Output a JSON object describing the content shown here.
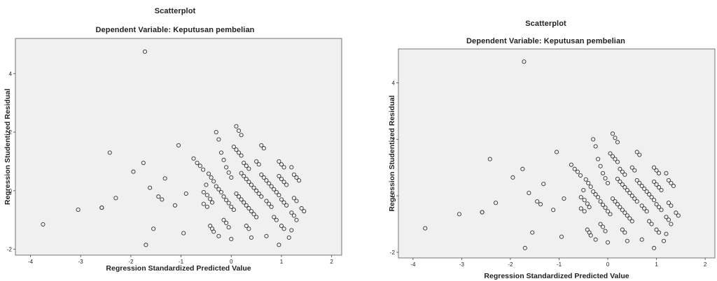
{
  "chart_data": [
    {
      "type": "scatter",
      "title": "Scatterplot",
      "subtitle": "Dependent Variable: Keputusan pembelian",
      "xlabel": "Regression Standardized Predicted Value",
      "ylabel": "Regression Studentized Residual",
      "xlim": [
        -4.3,
        2.2
      ],
      "ylim": [
        -2.2,
        5.2
      ],
      "xticks": [
        "-4",
        "-3",
        "-2",
        "-1",
        "0",
        "1",
        "2"
      ],
      "yticks": [
        "-2",
        "0",
        "2",
        "4"
      ],
      "grid": false,
      "points": [
        [
          -1.72,
          4.75
        ],
        [
          -3.75,
          -1.15
        ],
        [
          -3.05,
          -0.65
        ],
        [
          -2.58,
          -0.58
        ],
        [
          -2.58,
          -0.58
        ],
        [
          -2.42,
          1.3
        ],
        [
          -2.3,
          -0.25
        ],
        [
          -1.95,
          0.65
        ],
        [
          -1.75,
          0.95
        ],
        [
          -1.62,
          0.1
        ],
        [
          -1.55,
          -1.3
        ],
        [
          -1.7,
          -1.85
        ],
        [
          -1.45,
          -0.2
        ],
        [
          -1.38,
          -0.3
        ],
        [
          -1.32,
          0.42
        ],
        [
          -1.12,
          -0.5
        ],
        [
          -1.05,
          1.55
        ],
        [
          -0.95,
          -1.45
        ],
        [
          -0.9,
          -0.1
        ],
        [
          -0.75,
          1.1
        ],
        [
          -0.68,
          0.95
        ],
        [
          -0.62,
          0.85
        ],
        [
          -0.56,
          0.72
        ],
        [
          -0.5,
          0.2
        ],
        [
          -0.45,
          0.58
        ],
        [
          -0.4,
          0.45
        ],
        [
          -0.35,
          0.32
        ],
        [
          -0.3,
          0.15
        ],
        [
          -0.25,
          0.05
        ],
        [
          -0.2,
          -0.05
        ],
        [
          -0.15,
          -0.2
        ],
        [
          -0.1,
          -0.32
        ],
        [
          -0.05,
          -0.42
        ],
        [
          0.0,
          -0.55
        ],
        [
          0.05,
          -0.65
        ],
        [
          -0.55,
          -0.05
        ],
        [
          -0.48,
          -0.15
        ],
        [
          -0.42,
          -0.28
        ],
        [
          -0.38,
          -0.4
        ],
        [
          -0.55,
          -0.45
        ],
        [
          -0.48,
          -0.55
        ],
        [
          -0.42,
          -1.2
        ],
        [
          -0.38,
          -1.3
        ],
        [
          -0.35,
          -1.4
        ],
        [
          -0.15,
          -1.0
        ],
        [
          -0.1,
          -1.1
        ],
        [
          -0.05,
          -1.25
        ],
        [
          -0.3,
          2.0
        ],
        [
          -0.25,
          1.75
        ],
        [
          -0.2,
          1.3
        ],
        [
          -0.15,
          1.05
        ],
        [
          -0.1,
          0.8
        ],
        [
          -0.05,
          0.62
        ],
        [
          0.0,
          0.45
        ],
        [
          -0.25,
          -1.55
        ],
        [
          0.0,
          -1.65
        ],
        [
          0.1,
          2.2
        ],
        [
          0.15,
          2.05
        ],
        [
          0.2,
          1.9
        ],
        [
          0.05,
          1.5
        ],
        [
          0.1,
          1.4
        ],
        [
          0.15,
          1.3
        ],
        [
          0.2,
          1.2
        ],
        [
          0.25,
          0.95
        ],
        [
          0.3,
          0.85
        ],
        [
          0.35,
          0.75
        ],
        [
          0.2,
          0.6
        ],
        [
          0.25,
          0.5
        ],
        [
          0.3,
          0.4
        ],
        [
          0.35,
          0.3
        ],
        [
          0.4,
          0.2
        ],
        [
          0.45,
          0.1
        ],
        [
          0.5,
          0.0
        ],
        [
          0.55,
          -0.1
        ],
        [
          0.6,
          -0.2
        ],
        [
          0.1,
          -0.1
        ],
        [
          0.15,
          -0.2
        ],
        [
          0.2,
          -0.3
        ],
        [
          0.25,
          -0.4
        ],
        [
          0.3,
          -0.5
        ],
        [
          0.35,
          -0.6
        ],
        [
          0.4,
          -0.7
        ],
        [
          0.45,
          -0.8
        ],
        [
          0.5,
          -0.9
        ],
        [
          0.3,
          -1.2
        ],
        [
          0.35,
          -1.3
        ],
        [
          0.4,
          -1.6
        ],
        [
          0.6,
          1.55
        ],
        [
          0.65,
          1.45
        ],
        [
          0.5,
          1.0
        ],
        [
          0.55,
          0.9
        ],
        [
          0.6,
          0.55
        ],
        [
          0.65,
          0.45
        ],
        [
          0.7,
          0.35
        ],
        [
          0.75,
          0.25
        ],
        [
          0.8,
          0.15
        ],
        [
          0.85,
          0.05
        ],
        [
          0.9,
          -0.05
        ],
        [
          0.95,
          -0.15
        ],
        [
          0.7,
          -0.35
        ],
        [
          0.75,
          -0.45
        ],
        [
          0.8,
          -0.55
        ],
        [
          0.7,
          -1.55
        ],
        [
          0.85,
          -0.9
        ],
        [
          0.9,
          -1.0
        ],
        [
          0.95,
          1.0
        ],
        [
          1.0,
          0.9
        ],
        [
          1.05,
          0.8
        ],
        [
          0.95,
          0.5
        ],
        [
          1.0,
          0.4
        ],
        [
          1.05,
          0.3
        ],
        [
          1.1,
          0.2
        ],
        [
          1.0,
          -0.3
        ],
        [
          1.05,
          -0.4
        ],
        [
          1.1,
          -0.5
        ],
        [
          1.0,
          -1.2
        ],
        [
          1.05,
          -1.3
        ],
        [
          0.95,
          -1.85
        ],
        [
          1.2,
          0.8
        ],
        [
          1.25,
          0.55
        ],
        [
          1.3,
          0.45
        ],
        [
          1.35,
          0.35
        ],
        [
          1.25,
          -0.25
        ],
        [
          1.3,
          -0.35
        ],
        [
          1.2,
          -0.75
        ],
        [
          1.25,
          -0.85
        ],
        [
          1.3,
          -1.0
        ],
        [
          1.2,
          -1.35
        ],
        [
          1.15,
          -1.6
        ],
        [
          1.4,
          -0.6
        ],
        [
          1.45,
          -0.7
        ]
      ]
    },
    {
      "type": "scatter",
      "title": "Scatterplot",
      "subtitle": "Dependent Variable: Keputusan pembelian",
      "xlabel": "Regression Standardized Predicted Value",
      "ylabel": "Regression Studentized Residual",
      "xlim": [
        -4.3,
        2.2
      ],
      "ylim": [
        -2.2,
        5.2
      ],
      "xticks": [
        "-4",
        "-3",
        "-2",
        "-1",
        "0",
        "1",
        "2"
      ],
      "yticks": [
        "-2",
        "0",
        "2",
        "4"
      ],
      "grid": false,
      "points": [
        [
          -1.72,
          4.75
        ],
        [
          -3.75,
          -1.15
        ],
        [
          -3.05,
          -0.65
        ],
        [
          -2.58,
          -0.58
        ],
        [
          -2.58,
          -0.58
        ],
        [
          -2.42,
          1.3
        ],
        [
          -2.3,
          -0.25
        ],
        [
          -1.95,
          0.65
        ],
        [
          -1.75,
          0.95
        ],
        [
          -1.62,
          0.1
        ],
        [
          -1.55,
          -1.3
        ],
        [
          -1.7,
          -1.85
        ],
        [
          -1.45,
          -0.2
        ],
        [
          -1.38,
          -0.3
        ],
        [
          -1.32,
          0.42
        ],
        [
          -1.12,
          -0.5
        ],
        [
          -1.05,
          1.55
        ],
        [
          -0.95,
          -1.45
        ],
        [
          -0.9,
          -0.1
        ],
        [
          -0.75,
          1.1
        ],
        [
          -0.68,
          0.95
        ],
        [
          -0.62,
          0.85
        ],
        [
          -0.56,
          0.72
        ],
        [
          -0.5,
          0.2
        ],
        [
          -0.45,
          0.58
        ],
        [
          -0.4,
          0.45
        ],
        [
          -0.35,
          0.32
        ],
        [
          -0.3,
          0.15
        ],
        [
          -0.25,
          0.05
        ],
        [
          -0.2,
          -0.05
        ],
        [
          -0.15,
          -0.2
        ],
        [
          -0.1,
          -0.32
        ],
        [
          -0.05,
          -0.42
        ],
        [
          0.0,
          -0.55
        ],
        [
          0.05,
          -0.65
        ],
        [
          -0.55,
          -0.05
        ],
        [
          -0.48,
          -0.15
        ],
        [
          -0.42,
          -0.28
        ],
        [
          -0.38,
          -0.4
        ],
        [
          -0.55,
          -0.45
        ],
        [
          -0.48,
          -0.55
        ],
        [
          -0.42,
          -1.2
        ],
        [
          -0.38,
          -1.3
        ],
        [
          -0.35,
          -1.4
        ],
        [
          -0.15,
          -1.0
        ],
        [
          -0.1,
          -1.1
        ],
        [
          -0.05,
          -1.25
        ],
        [
          -0.3,
          2.0
        ],
        [
          -0.25,
          1.75
        ],
        [
          -0.2,
          1.3
        ],
        [
          -0.15,
          1.05
        ],
        [
          -0.1,
          0.8
        ],
        [
          -0.05,
          0.62
        ],
        [
          0.0,
          0.45
        ],
        [
          -0.25,
          -1.55
        ],
        [
          0.0,
          -1.65
        ],
        [
          0.1,
          2.2
        ],
        [
          0.15,
          2.05
        ],
        [
          0.2,
          1.9
        ],
        [
          0.05,
          1.5
        ],
        [
          0.1,
          1.4
        ],
        [
          0.15,
          1.3
        ],
        [
          0.2,
          1.2
        ],
        [
          0.25,
          0.95
        ],
        [
          0.3,
          0.85
        ],
        [
          0.35,
          0.75
        ],
        [
          0.2,
          0.6
        ],
        [
          0.25,
          0.5
        ],
        [
          0.3,
          0.4
        ],
        [
          0.35,
          0.3
        ],
        [
          0.4,
          0.2
        ],
        [
          0.45,
          0.1
        ],
        [
          0.5,
          0.0
        ],
        [
          0.55,
          -0.1
        ],
        [
          0.6,
          -0.2
        ],
        [
          0.1,
          -0.1
        ],
        [
          0.15,
          -0.2
        ],
        [
          0.2,
          -0.3
        ],
        [
          0.25,
          -0.4
        ],
        [
          0.3,
          -0.5
        ],
        [
          0.35,
          -0.6
        ],
        [
          0.4,
          -0.7
        ],
        [
          0.45,
          -0.8
        ],
        [
          0.5,
          -0.9
        ],
        [
          0.3,
          -1.2
        ],
        [
          0.35,
          -1.3
        ],
        [
          0.4,
          -1.6
        ],
        [
          0.6,
          1.55
        ],
        [
          0.65,
          1.45
        ],
        [
          0.5,
          1.0
        ],
        [
          0.55,
          0.9
        ],
        [
          0.6,
          0.55
        ],
        [
          0.65,
          0.45
        ],
        [
          0.7,
          0.35
        ],
        [
          0.75,
          0.25
        ],
        [
          0.8,
          0.15
        ],
        [
          0.85,
          0.05
        ],
        [
          0.9,
          -0.05
        ],
        [
          0.95,
          -0.15
        ],
        [
          0.7,
          -0.35
        ],
        [
          0.75,
          -0.45
        ],
        [
          0.8,
          -0.55
        ],
        [
          0.7,
          -1.55
        ],
        [
          0.85,
          -0.9
        ],
        [
          0.9,
          -1.0
        ],
        [
          0.95,
          1.0
        ],
        [
          1.0,
          0.9
        ],
        [
          1.05,
          0.8
        ],
        [
          0.95,
          0.5
        ],
        [
          1.0,
          0.4
        ],
        [
          1.05,
          0.3
        ],
        [
          1.1,
          0.2
        ],
        [
          1.0,
          -0.3
        ],
        [
          1.05,
          -0.4
        ],
        [
          1.1,
          -0.5
        ],
        [
          1.0,
          -1.2
        ],
        [
          1.05,
          -1.3
        ],
        [
          0.95,
          -1.85
        ],
        [
          1.2,
          0.8
        ],
        [
          1.25,
          0.55
        ],
        [
          1.3,
          0.45
        ],
        [
          1.35,
          0.35
        ],
        [
          1.25,
          -0.25
        ],
        [
          1.3,
          -0.35
        ],
        [
          1.2,
          -0.75
        ],
        [
          1.25,
          -0.85
        ],
        [
          1.3,
          -1.0
        ],
        [
          1.2,
          -1.35
        ],
        [
          1.15,
          -1.6
        ],
        [
          1.4,
          -0.6
        ],
        [
          1.45,
          -0.7
        ]
      ]
    }
  ]
}
